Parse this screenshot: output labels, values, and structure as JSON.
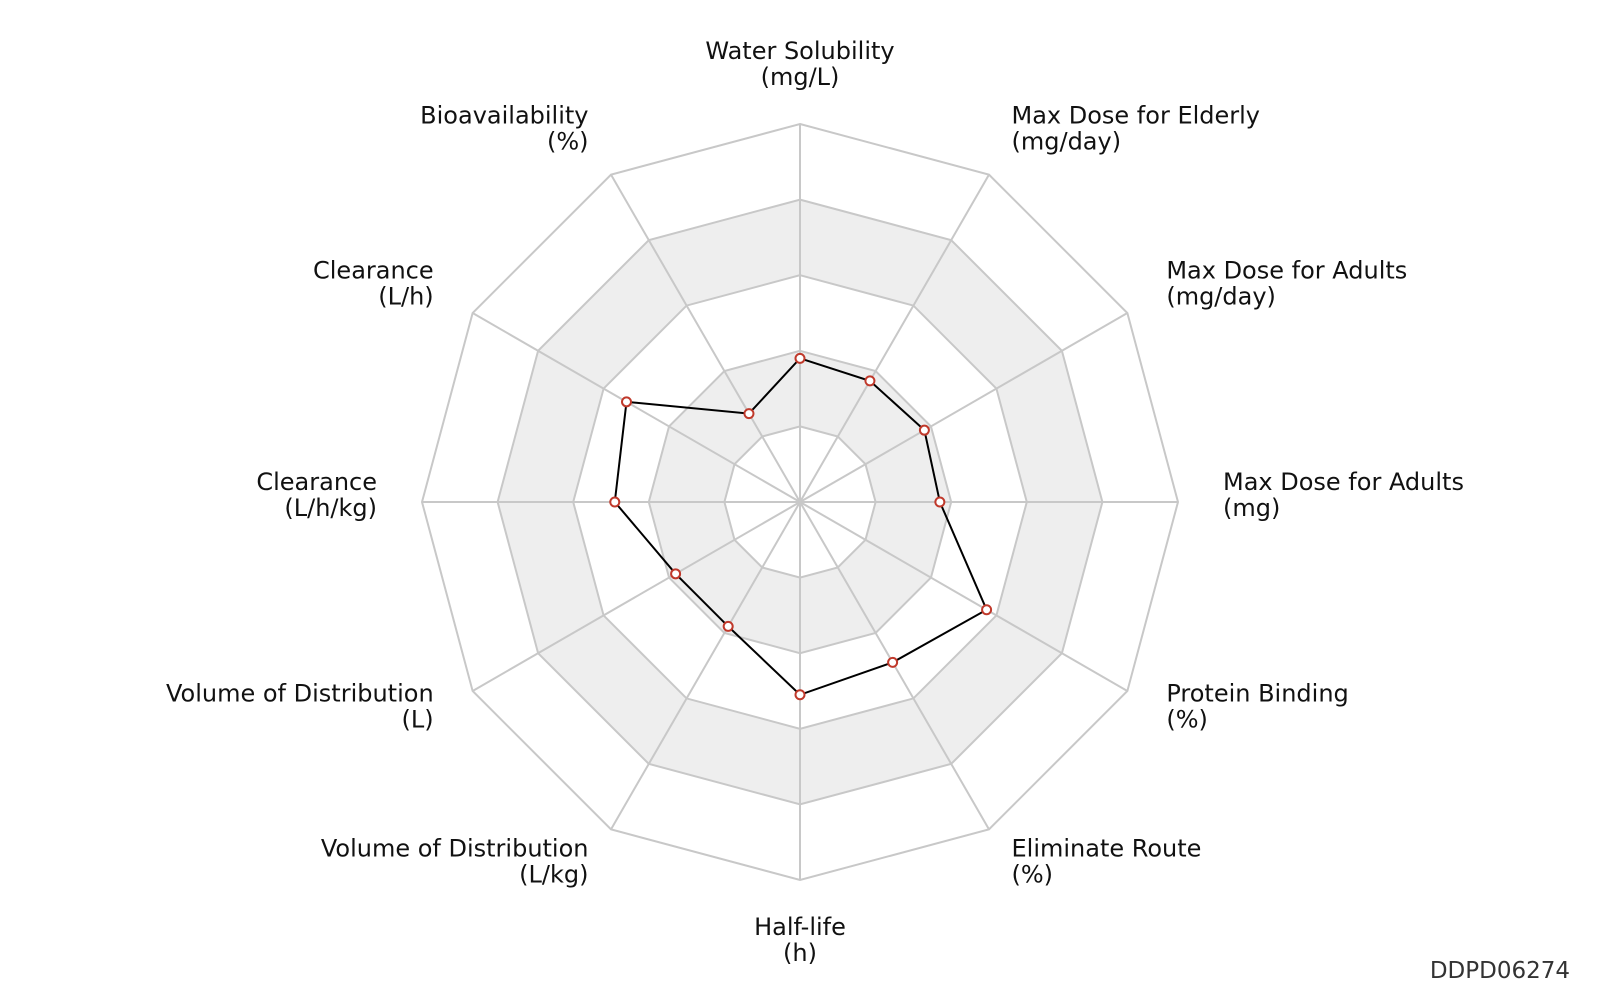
{
  "chart_data": {
    "type": "radar",
    "axes": [
      {
        "name": "Water Solubility",
        "unit": "(mg/L)"
      },
      {
        "name": "Max Dose for Elderly",
        "unit": "(mg/day)"
      },
      {
        "name": "Max Dose for Adults",
        "unit": "(mg/day)"
      },
      {
        "name": "Max Dose for Adults",
        "unit": "(mg)"
      },
      {
        "name": "Protein Binding",
        "unit": "(%)"
      },
      {
        "name": "Eliminate Route",
        "unit": "(%)"
      },
      {
        "name": "Half-life",
        "unit": "(h)"
      },
      {
        "name": "Volume of Distribution",
        "unit": "(L/kg)"
      },
      {
        "name": "Volume of Distribution",
        "unit": "(L)"
      },
      {
        "name": "Clearance",
        "unit": "(L/h/kg)"
      },
      {
        "name": "Clearance",
        "unit": "(L/h)"
      },
      {
        "name": "Bioavailability",
        "unit": "(%)"
      }
    ],
    "values": [
      0.38,
      0.37,
      0.38,
      0.37,
      0.57,
      0.49,
      0.51,
      0.38,
      0.38,
      0.49,
      0.53,
      0.27
    ],
    "range": [
      0,
      1
    ],
    "rings": 5,
    "grid": true
  },
  "id_label": "DDPD06274",
  "colors": {
    "series_line": "#000000",
    "marker_edge": "#c0392b",
    "grid_line": "#c8c8c8",
    "band_fill": "#eeeeee"
  }
}
